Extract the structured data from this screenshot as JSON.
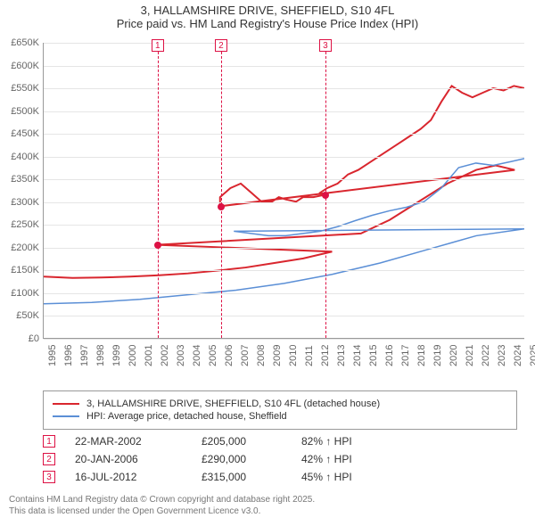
{
  "title_line1": "3, HALLAMSHIRE DRIVE, SHEFFIELD, S10 4FL",
  "title_line2": "Price paid vs. HM Land Registry's House Price Index (HPI)",
  "chart": {
    "type": "line",
    "background_color": "#ffffff",
    "grid_color": "#e5e5e5",
    "axis_color": "#999",
    "label_color": "#666",
    "label_fontsize": 11,
    "x_years": [
      "1995",
      "1996",
      "1997",
      "1998",
      "1999",
      "2000",
      "2001",
      "2002",
      "2003",
      "2004",
      "2005",
      "2006",
      "2007",
      "2008",
      "2009",
      "2010",
      "2011",
      "2012",
      "2013",
      "2014",
      "2015",
      "2016",
      "2017",
      "2018",
      "2019",
      "2020",
      "2021",
      "2022",
      "2023",
      "2024",
      "2025"
    ],
    "x_range_fraction_count": 30,
    "ylim": [
      0,
      650000
    ],
    "y_ticks": [
      "£0",
      "£50K",
      "£100K",
      "£150K",
      "£200K",
      "£250K",
      "£300K",
      "£350K",
      "£400K",
      "£450K",
      "£500K",
      "£550K",
      "£600K",
      "£650K"
    ],
    "y_tick_values": [
      0,
      50000,
      100000,
      150000,
      200000,
      250000,
      300000,
      350000,
      400000,
      450000,
      500000,
      550000,
      600000,
      650000
    ],
    "series": [
      {
        "name": "3, HALLAMSHIRE DRIVE, SHEFFIELD, S10 4FL (detached house)",
        "color": "#d9262e",
        "line_width": 2,
        "data": [
          [
            0.0,
            135000
          ],
          [
            0.06,
            132000
          ],
          [
            0.12,
            133000
          ],
          [
            0.18,
            135000
          ],
          [
            0.24,
            138000
          ],
          [
            0.3,
            142000
          ],
          [
            0.36,
            148000
          ],
          [
            0.42,
            155000
          ],
          [
            0.48,
            165000
          ],
          [
            0.54,
            175000
          ],
          [
            0.6,
            190000
          ],
          [
            0.235,
            205000
          ],
          [
            0.66,
            230000
          ],
          [
            0.72,
            260000
          ],
          [
            0.78,
            300000
          ],
          [
            0.84,
            340000
          ],
          [
            0.9,
            370000
          ],
          [
            0.94,
            380000
          ],
          [
            0.98,
            370000
          ],
          [
            0.367,
            290000
          ],
          [
            1.02,
            310000
          ],
          [
            1.08,
            330000
          ],
          [
            1.14,
            340000
          ],
          [
            1.2,
            320000
          ],
          [
            1.26,
            300000
          ],
          [
            1.32,
            300000
          ],
          [
            1.36,
            310000
          ],
          [
            1.4,
            305000
          ],
          [
            1.46,
            300000
          ],
          [
            1.5,
            310000
          ],
          [
            1.56,
            310000
          ],
          [
            0.584,
            315000
          ],
          [
            1.6,
            320000
          ],
          [
            1.64,
            330000
          ],
          [
            1.7,
            340000
          ],
          [
            1.76,
            360000
          ],
          [
            1.82,
            370000
          ],
          [
            1.88,
            385000
          ],
          [
            1.94,
            400000
          ],
          [
            2.0,
            415000
          ],
          [
            2.06,
            430000
          ],
          [
            2.12,
            445000
          ],
          [
            2.18,
            460000
          ],
          [
            2.24,
            480000
          ],
          [
            2.3,
            520000
          ],
          [
            2.36,
            555000
          ],
          [
            2.42,
            540000
          ],
          [
            2.48,
            530000
          ],
          [
            2.54,
            540000
          ],
          [
            2.6,
            550000
          ],
          [
            2.66,
            545000
          ],
          [
            2.72,
            555000
          ],
          [
            2.78,
            550000
          ]
        ],
        "data_normalized": true
      },
      {
        "name": "HPI: Average price, detached house, Sheffield",
        "color": "#5b8fd6",
        "line_width": 1.5,
        "data": [
          [
            0.0,
            75000
          ],
          [
            0.1,
            78000
          ],
          [
            0.2,
            85000
          ],
          [
            0.3,
            95000
          ],
          [
            0.4,
            105000
          ],
          [
            0.5,
            120000
          ],
          [
            0.6,
            140000
          ],
          [
            0.7,
            165000
          ],
          [
            0.8,
            195000
          ],
          [
            0.9,
            225000
          ],
          [
            1.0,
            240000
          ],
          [
            1.1,
            235000
          ],
          [
            1.2,
            230000
          ],
          [
            1.3,
            225000
          ],
          [
            1.4,
            225000
          ],
          [
            1.5,
            230000
          ],
          [
            1.6,
            235000
          ],
          [
            1.7,
            245000
          ],
          [
            1.8,
            258000
          ],
          [
            1.9,
            270000
          ],
          [
            2.0,
            280000
          ],
          [
            2.1,
            288000
          ],
          [
            2.2,
            300000
          ],
          [
            2.3,
            330000
          ],
          [
            2.4,
            375000
          ],
          [
            2.5,
            385000
          ],
          [
            2.6,
            380000
          ],
          [
            2.7,
            388000
          ],
          [
            2.78,
            395000
          ]
        ],
        "data_normalized": true
      }
    ]
  },
  "events": [
    {
      "num": "1",
      "year_fraction": 0.2367,
      "date": "22-MAR-2002",
      "price": "£205,000",
      "diff": "82% ↑ HPI",
      "price_value": 205000
    },
    {
      "num": "2",
      "year_fraction": 0.3683,
      "date": "20-JAN-2006",
      "price": "£290,000",
      "diff": "42% ↑ HPI",
      "price_value": 290000
    },
    {
      "num": "3",
      "year_fraction": 0.585,
      "date": "16-JUL-2012",
      "price": "£315,000",
      "diff": "45% ↑ HPI",
      "price_value": 315000
    }
  ],
  "legend": {
    "border_color": "#999"
  },
  "footer_line1": "Contains HM Land Registry data © Crown copyright and database right 2025.",
  "footer_line2": "This data is licensed under the Open Government Licence v3.0."
}
